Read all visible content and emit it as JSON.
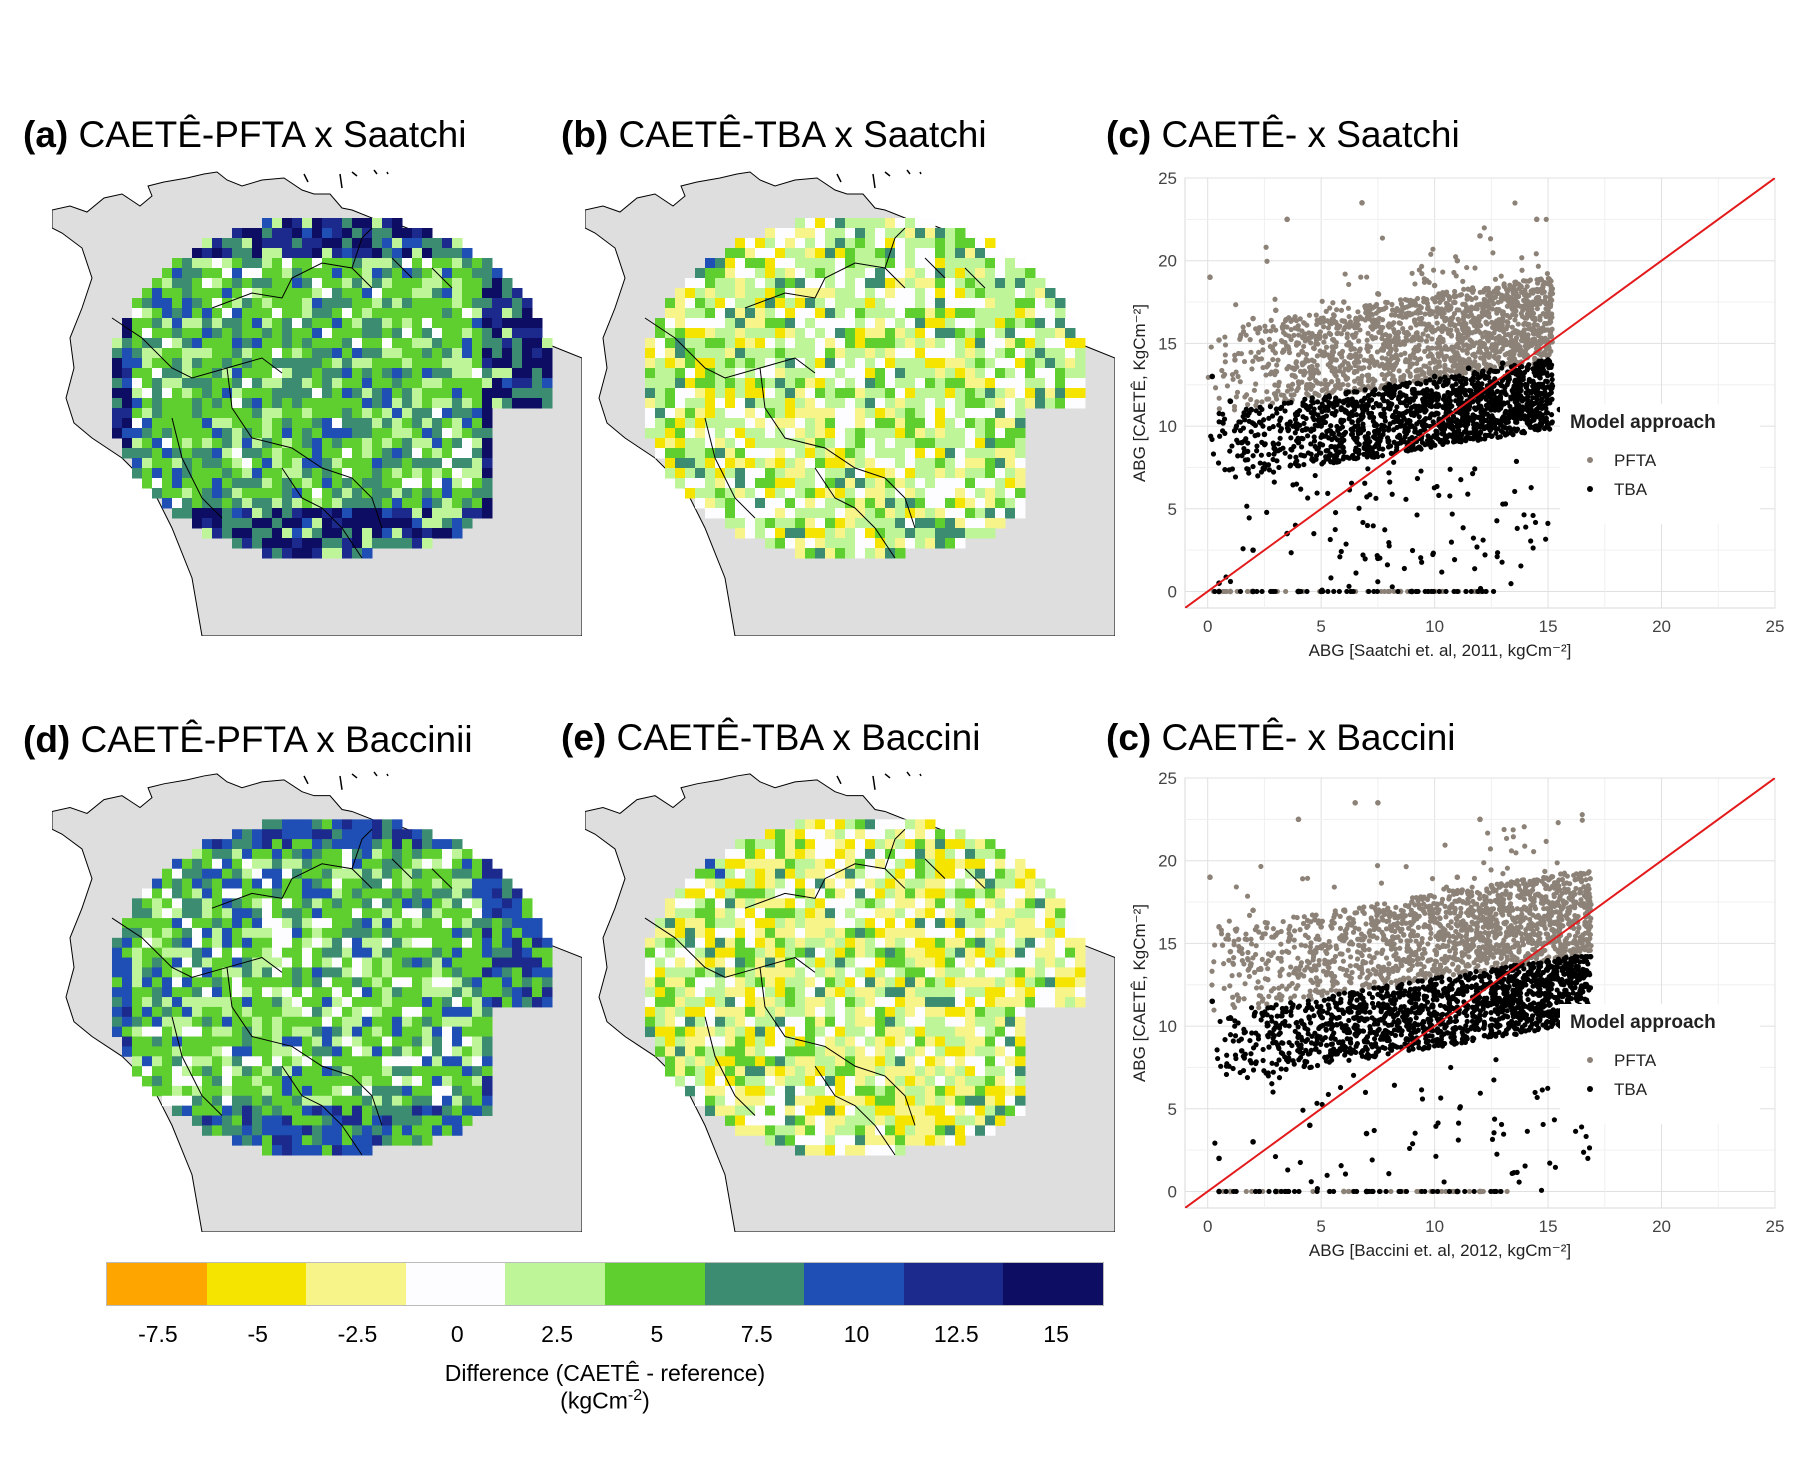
{
  "panels": {
    "a": {
      "letter": "(a)",
      "text": " CAETÊ-PFTA x Saatchi"
    },
    "b": {
      "letter": "(b)",
      "text": " CAETÊ-TBA x Saatchi"
    },
    "c": {
      "letter": "(c)",
      "text": " CAETÊ- x Saatchi"
    },
    "d": {
      "letter": "(d)",
      "text": " CAETÊ-PFTA x Baccinii"
    },
    "e": {
      "letter": "(e)",
      "text": " CAETÊ-TBA x Baccini"
    },
    "f": {
      "letter": "(c)",
      "text": " CAETÊ- x Baccini"
    }
  },
  "colorbar": {
    "colors": [
      "#FFA500",
      "#F5E300",
      "#F7F58A",
      "#FDFCFF",
      "#BDF598",
      "#5ECF2E",
      "#3B8C70",
      "#1F4FB4",
      "#1B2A8C",
      "#0D0E63"
    ],
    "ticks": [
      "-7.5",
      "-5",
      "-2.5",
      "0",
      "2.5",
      "5",
      "7.5",
      "10",
      "12.5",
      "15"
    ],
    "label_line1": "Difference (CAETÊ - reference)",
    "label_line2_base": "(kgCm",
    "label_line2_sup": "-2",
    "label_line2_end": ")"
  },
  "chart_data": [
    {
      "type": "scatter",
      "xlabel": "ABG [Saatchi et. al, 2011, kgCm⁻²]",
      "ylabel": "ABG [CAETÊ, KgCm⁻²]",
      "xlim": [
        -1,
        25
      ],
      "ylim": [
        -1,
        25
      ],
      "xticks": [
        "0",
        "5",
        "10",
        "15",
        "20",
        "25"
      ],
      "yticks": [
        "0",
        "5",
        "10",
        "15",
        "20",
        "25"
      ],
      "legend_title": "Model approach",
      "legend_position": "right",
      "one_to_one_line": true,
      "series": [
        {
          "name": "PFTA",
          "color": "#8C8278",
          "points": [
            [
              0.1,
              19.0
            ],
            [
              0.5,
              15.2
            ],
            [
              1.2,
              14.0
            ],
            [
              2.0,
              16.5
            ],
            [
              3.0,
              17.0
            ],
            [
              3.5,
              22.5
            ],
            [
              4.0,
              15.0
            ],
            [
              5.0,
              16.5
            ],
            [
              6.0,
              17.5
            ],
            [
              6.8,
              23.5
            ],
            [
              7.5,
              18.0
            ],
            [
              8.0,
              16.0
            ],
            [
              9.0,
              17.5
            ],
            [
              10.0,
              18.5
            ],
            [
              10.5,
              16.5
            ],
            [
              11.0,
              20.0
            ],
            [
              11.5,
              17.0
            ],
            [
              12.0,
              21.5
            ],
            [
              12.5,
              18.0
            ],
            [
              13.0,
              16.5
            ],
            [
              14.0,
              18.0
            ],
            [
              14.5,
              22.5
            ],
            [
              15.0,
              17.0
            ],
            [
              1.0,
              0.0
            ],
            [
              5.0,
              0.0
            ],
            [
              8.5,
              0.0
            ],
            [
              12.0,
              0.0
            ]
          ]
        },
        {
          "name": "TBA",
          "color": "#000000",
          "points": [
            [
              0.2,
              13.0
            ],
            [
              0.5,
              0.5
            ],
            [
              1.0,
              11.5
            ],
            [
              1.5,
              9.0
            ],
            [
              2.0,
              2.5
            ],
            [
              2.5,
              9.5
            ],
            [
              3.0,
              8.5
            ],
            [
              3.5,
              3.5
            ],
            [
              4.0,
              9.0
            ],
            [
              5.0,
              10.0
            ],
            [
              6.0,
              9.5
            ],
            [
              7.0,
              11.0
            ],
            [
              7.5,
              2.0
            ],
            [
              8.0,
              12.5
            ],
            [
              9.0,
              10.0
            ],
            [
              10.0,
              13.0
            ],
            [
              10.5,
              11.5
            ],
            [
              11.0,
              10.0
            ],
            [
              11.5,
              13.5
            ],
            [
              12.0,
              12.0
            ],
            [
              12.5,
              11.0
            ],
            [
              13.0,
              13.8
            ],
            [
              13.5,
              10.5
            ],
            [
              14.0,
              12.5
            ],
            [
              14.5,
              11.0
            ],
            [
              15.0,
              14.0
            ],
            [
              15.5,
              11.0
            ],
            [
              0.5,
              0.0
            ],
            [
              2.0,
              0.0
            ],
            [
              4.0,
              0.0
            ],
            [
              9.0,
              0.0
            ]
          ]
        }
      ]
    },
    {
      "type": "scatter",
      "xlabel": "ABG [Baccini et. al, 2012, kgCm⁻²]",
      "ylabel": "ABG [CAETÊ, KgCm⁻²]",
      "xlim": [
        -1,
        25
      ],
      "ylim": [
        -1,
        25
      ],
      "xticks": [
        "0",
        "5",
        "10",
        "15",
        "20",
        "25"
      ],
      "yticks": [
        "0",
        "5",
        "10",
        "15",
        "20",
        "25"
      ],
      "legend_title": "Model approach",
      "legend_position": "right",
      "one_to_one_line": true,
      "series": [
        {
          "name": "PFTA",
          "color": "#8C8278",
          "points": [
            [
              0.1,
              19.0
            ],
            [
              0.5,
              16.0
            ],
            [
              1.0,
              14.5
            ],
            [
              2.0,
              17.0
            ],
            [
              3.0,
              15.5
            ],
            [
              4.0,
              22.5
            ],
            [
              5.0,
              16.0
            ],
            [
              6.0,
              17.0
            ],
            [
              6.5,
              23.5
            ],
            [
              7.5,
              23.5
            ],
            [
              8.0,
              15.0
            ],
            [
              9.0,
              17.5
            ],
            [
              10.0,
              16.5
            ],
            [
              11.0,
              19.0
            ],
            [
              11.5,
              17.0
            ],
            [
              12.0,
              22.5
            ],
            [
              12.5,
              18.5
            ],
            [
              13.0,
              17.0
            ],
            [
              14.0,
              18.0
            ],
            [
              15.0,
              17.5
            ],
            [
              16.0,
              18.0
            ],
            [
              16.8,
              18.0
            ],
            [
              1.0,
              0.0
            ],
            [
              6.0,
              0.0
            ],
            [
              12.0,
              0.0
            ]
          ]
        },
        {
          "name": "TBA",
          "color": "#000000",
          "points": [
            [
              0.2,
              11.5
            ],
            [
              0.5,
              2.0
            ],
            [
              1.0,
              10.5
            ],
            [
              1.5,
              8.5
            ],
            [
              2.0,
              3.0
            ],
            [
              3.0,
              9.0
            ],
            [
              4.0,
              9.5
            ],
            [
              4.5,
              4.0
            ],
            [
              5.5,
              10.0
            ],
            [
              6.5,
              9.5
            ],
            [
              7.0,
              3.5
            ],
            [
              8.0,
              11.0
            ],
            [
              9.0,
              10.0
            ],
            [
              10.0,
              12.5
            ],
            [
              10.5,
              10.0
            ],
            [
              11.0,
              11.5
            ],
            [
              12.0,
              13.0
            ],
            [
              12.5,
              12.0
            ],
            [
              13.0,
              10.5
            ],
            [
              14.0,
              13.0
            ],
            [
              15.0,
              12.5
            ],
            [
              16.0,
              13.0
            ],
            [
              16.8,
              13.2
            ],
            [
              0.5,
              0.0
            ],
            [
              3.0,
              0.0
            ],
            [
              7.0,
              0.0
            ],
            [
              11.0,
              0.0
            ]
          ]
        }
      ]
    }
  ]
}
